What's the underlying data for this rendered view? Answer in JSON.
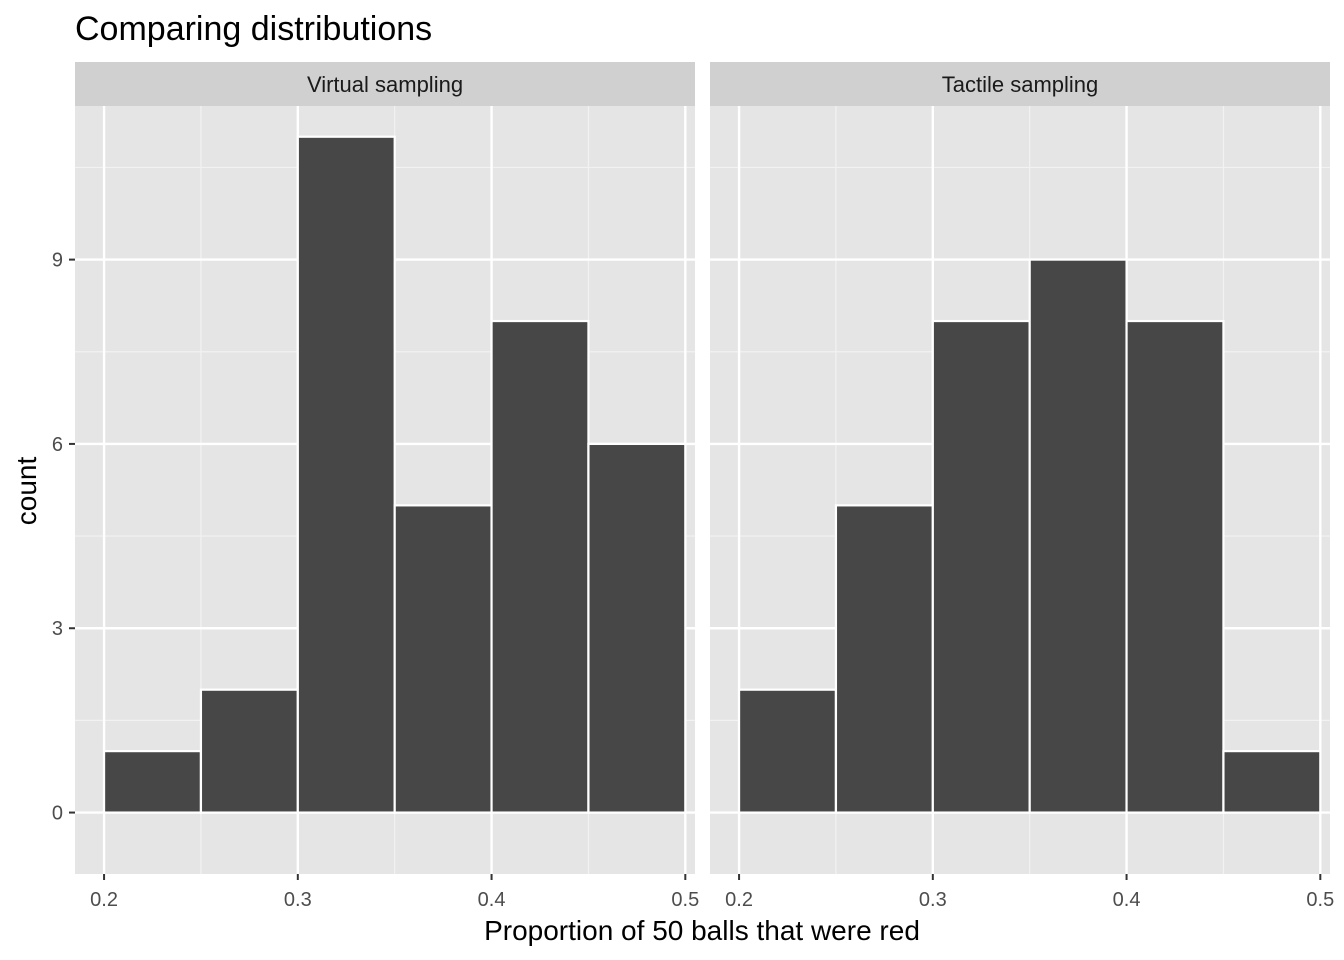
{
  "chart_data": {
    "type": "bar",
    "title": "Comparing distributions",
    "xlabel": "Proportion of 50 balls that were red",
    "ylabel": "count",
    "xlim": [
      0.185,
      0.505
    ],
    "ylim": [
      -1,
      11.5
    ],
    "x_ticks": [
      0.2,
      0.3,
      0.4,
      0.5
    ],
    "x_tick_labels": [
      "0.2",
      "0.3",
      "0.4",
      "0.5"
    ],
    "y_ticks": [
      0,
      3,
      6,
      9
    ],
    "y_tick_labels": [
      "0",
      "3",
      "6",
      "9"
    ],
    "bin_edges": [
      0.2,
      0.25,
      0.3,
      0.35,
      0.4,
      0.45,
      0.5
    ],
    "grid": true,
    "bar_color": "#474747",
    "bar_outline": "#ffffff",
    "panel_background": "#e5e5e5",
    "strip_background": "#d0d0d0",
    "facets": [
      {
        "name": "Virtual sampling",
        "values": [
          1,
          2,
          11,
          5,
          8,
          6
        ]
      },
      {
        "name": "Tactile sampling",
        "values": [
          2,
          5,
          8,
          9,
          8,
          1
        ]
      }
    ]
  }
}
